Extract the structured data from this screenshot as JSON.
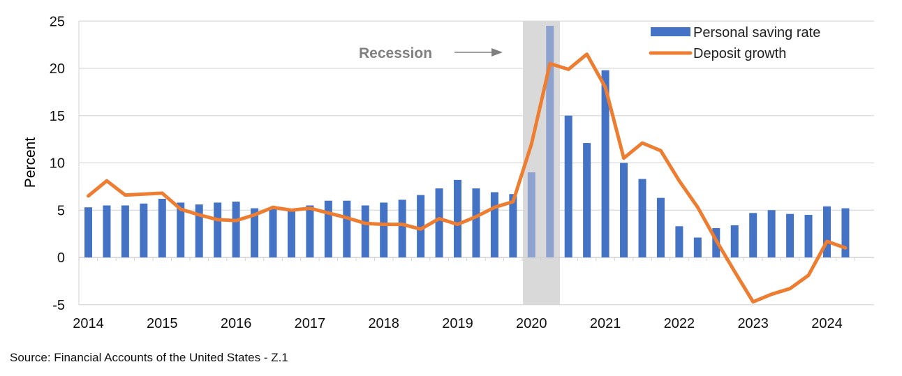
{
  "chart_data": {
    "type": "bar+line",
    "title": "",
    "xlabel": "",
    "ylabel": "Percent",
    "ylim": [
      -5,
      25
    ],
    "yticks": [
      -5,
      0,
      5,
      10,
      15,
      20,
      25
    ],
    "year_labels": [
      "2014",
      "2015",
      "2016",
      "2017",
      "2018",
      "2019",
      "2020",
      "2021",
      "2022",
      "2023",
      "2024"
    ],
    "quarters": [
      "2014Q1",
      "2014Q2",
      "2014Q3",
      "2014Q4",
      "2015Q1",
      "2015Q2",
      "2015Q3",
      "2015Q4",
      "2016Q1",
      "2016Q2",
      "2016Q3",
      "2016Q4",
      "2017Q1",
      "2017Q2",
      "2017Q3",
      "2017Q4",
      "2018Q1",
      "2018Q2",
      "2018Q3",
      "2018Q4",
      "2019Q1",
      "2019Q2",
      "2019Q3",
      "2019Q4",
      "2020Q1",
      "2020Q2",
      "2020Q3",
      "2020Q4",
      "2021Q1",
      "2021Q2",
      "2021Q3",
      "2021Q4",
      "2022Q1",
      "2022Q2",
      "2022Q3",
      "2022Q4",
      "2023Q1",
      "2023Q2",
      "2023Q3",
      "2023Q4",
      "2024Q1",
      "2024Q2"
    ],
    "series": [
      {
        "name": "Personal saving rate",
        "kind": "bar",
        "color": "#4472c4",
        "recession_color": "#8ea2cf",
        "values": [
          5.3,
          5.5,
          5.5,
          5.7,
          6.2,
          5.8,
          5.6,
          5.8,
          5.9,
          5.2,
          5.1,
          5.1,
          5.5,
          6.0,
          6.0,
          5.5,
          5.8,
          6.1,
          6.6,
          7.3,
          8.2,
          7.3,
          6.9,
          6.7,
          9.0,
          24.5,
          15.0,
          12.1,
          19.8,
          10.0,
          8.3,
          6.3,
          3.3,
          2.1,
          3.1,
          3.4,
          4.7,
          5.0,
          4.6,
          4.5,
          5.4,
          5.2
        ]
      },
      {
        "name": "Deposit growth",
        "kind": "line",
        "color": "#ed7d31",
        "values": [
          6.5,
          8.1,
          6.6,
          6.7,
          6.8,
          5.1,
          4.5,
          4.0,
          3.9,
          4.5,
          5.3,
          5.0,
          5.2,
          4.7,
          4.2,
          3.6,
          3.5,
          3.5,
          3.0,
          4.1,
          3.5,
          4.3,
          5.3,
          5.9,
          12.0,
          20.5,
          19.9,
          21.5,
          18.0,
          10.5,
          12.1,
          11.3,
          8.1,
          5.3,
          1.8,
          -1.5,
          -4.7,
          -3.9,
          -3.3,
          -1.9,
          1.7,
          1.0
        ]
      }
    ],
    "recession": {
      "label": "Recession",
      "start": "2020Q1",
      "end": "2020Q2",
      "shade_color": "#d9d9d9",
      "arrow_color": "#808080"
    },
    "legend": {
      "position": "top-right",
      "entries": [
        "Personal saving rate",
        "Deposit growth"
      ]
    },
    "grid": true
  },
  "source": "Source: Financial Accounts of the United States - Z.1"
}
